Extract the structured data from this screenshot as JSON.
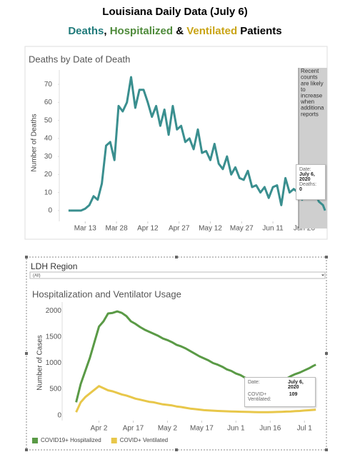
{
  "header": {
    "title": "Louisiana Daily Data (July 6)",
    "subtitle": [
      {
        "text": "Deaths",
        "color": "#1f7a7a"
      },
      {
        "text": ", ",
        "color": "#000000"
      },
      {
        "text": "Hospitalized",
        "color": "#4e8a3a"
      },
      {
        "text": " & ",
        "color": "#000000"
      },
      {
        "text": "Ventilated",
        "color": "#c9a416"
      },
      {
        "text": " Patients",
        "color": "#000000"
      }
    ]
  },
  "chart_data": [
    {
      "type": "line",
      "title": "Deaths by Date of Death",
      "y_label": "Number of Deaths",
      "xlim": [
        "2020-03-04",
        "2020-07-07"
      ],
      "ylim": [
        -6,
        76
      ],
      "grid": false,
      "yticks": [
        0,
        10,
        20,
        30,
        40,
        50,
        60,
        70
      ],
      "xticks": [
        {
          "value": "2020-03-13",
          "label": "Mar 13"
        },
        {
          "value": "2020-03-28",
          "label": "Mar 28"
        },
        {
          "value": "2020-04-12",
          "label": "Apr 12"
        },
        {
          "value": "2020-04-27",
          "label": "Apr 27"
        },
        {
          "value": "2020-05-12",
          "label": "May 12"
        },
        {
          "value": "2020-05-27",
          "label": "May 27"
        },
        {
          "value": "2020-06-11",
          "label": "Jun 11"
        },
        {
          "value": "2020-06-26",
          "label": "Jun 26"
        }
      ],
      "x": [
        "2020-03-05",
        "2020-03-07",
        "2020-03-09",
        "2020-03-11",
        "2020-03-13",
        "2020-03-15",
        "2020-03-17",
        "2020-03-19",
        "2020-03-21",
        "2020-03-23",
        "2020-03-25",
        "2020-03-27",
        "2020-03-29",
        "2020-03-31",
        "2020-04-02",
        "2020-04-04",
        "2020-04-06",
        "2020-04-08",
        "2020-04-10",
        "2020-04-12",
        "2020-04-14",
        "2020-04-16",
        "2020-04-18",
        "2020-04-20",
        "2020-04-22",
        "2020-04-24",
        "2020-04-26",
        "2020-04-28",
        "2020-04-30",
        "2020-05-02",
        "2020-05-04",
        "2020-05-06",
        "2020-05-08",
        "2020-05-10",
        "2020-05-12",
        "2020-05-14",
        "2020-05-16",
        "2020-05-18",
        "2020-05-20",
        "2020-05-22",
        "2020-05-24",
        "2020-05-26",
        "2020-05-28",
        "2020-05-30",
        "2020-06-01",
        "2020-06-03",
        "2020-06-05",
        "2020-06-07",
        "2020-06-09",
        "2020-06-11",
        "2020-06-13",
        "2020-06-15",
        "2020-06-17",
        "2020-06-19",
        "2020-06-21",
        "2020-06-23",
        "2020-06-25",
        "2020-06-27",
        "2020-06-29",
        "2020-07-01",
        "2020-07-03",
        "2020-07-05",
        "2020-07-06"
      ],
      "series": [
        {
          "name": "Deaths",
          "color": "#3a8f8f",
          "values": [
            0,
            0,
            0,
            0,
            1,
            3,
            8,
            6,
            15,
            36,
            38,
            28,
            58,
            55,
            60,
            74,
            57,
            67,
            67,
            60,
            52,
            58,
            47,
            56,
            42,
            58,
            45,
            47,
            38,
            40,
            34,
            45,
            32,
            33,
            28,
            37,
            26,
            23,
            30,
            20,
            24,
            18,
            17,
            22,
            13,
            14,
            10,
            13,
            7,
            13,
            14,
            3,
            18,
            10,
            12,
            10,
            6,
            13,
            9,
            11,
            5,
            3,
            0
          ]
        }
      ],
      "shaded_note": [
        "Recent",
        "counts",
        "are likely",
        "to",
        "increase",
        "when",
        "additiona",
        "reports"
      ],
      "tooltip": [
        {
          "label": "Date:",
          "value": "July 6, 2020"
        },
        {
          "label": "Deaths:",
          "value": 0
        }
      ]
    },
    {
      "type": "line",
      "title": "Hospitalization and Ventilator Usage",
      "y_label": "Number of Cases",
      "filter_label": "LDH Region",
      "filter_value": "(All)",
      "xlim": [
        "2020-03-20",
        "2020-07-10"
      ],
      "ylim": [
        -100,
        2100
      ],
      "grid": false,
      "yticks": [
        0,
        500,
        1000,
        1500,
        2000
      ],
      "xticks": [
        {
          "value": "2020-04-02",
          "label": "Apr 2"
        },
        {
          "value": "2020-04-17",
          "label": "Apr 17"
        },
        {
          "value": "2020-05-02",
          "label": "May 2"
        },
        {
          "value": "2020-05-17",
          "label": "May 17"
        },
        {
          "value": "2020-06-01",
          "label": "Jun 1"
        },
        {
          "value": "2020-06-16",
          "label": "Jun 16"
        },
        {
          "value": "2020-07-01",
          "label": "Jul 1"
        }
      ],
      "x": [
        "2020-03-23",
        "2020-03-25",
        "2020-03-27",
        "2020-03-29",
        "2020-03-31",
        "2020-04-02",
        "2020-04-04",
        "2020-04-06",
        "2020-04-08",
        "2020-04-10",
        "2020-04-12",
        "2020-04-14",
        "2020-04-16",
        "2020-04-18",
        "2020-04-20",
        "2020-04-22",
        "2020-04-24",
        "2020-04-26",
        "2020-04-28",
        "2020-04-30",
        "2020-05-02",
        "2020-05-04",
        "2020-05-06",
        "2020-05-08",
        "2020-05-10",
        "2020-05-12",
        "2020-05-14",
        "2020-05-16",
        "2020-05-18",
        "2020-05-20",
        "2020-05-22",
        "2020-05-24",
        "2020-05-26",
        "2020-05-28",
        "2020-05-30",
        "2020-06-01",
        "2020-06-03",
        "2020-06-05",
        "2020-06-07",
        "2020-06-09",
        "2020-06-11",
        "2020-06-13",
        "2020-06-15",
        "2020-06-17",
        "2020-06-19",
        "2020-06-21",
        "2020-06-23",
        "2020-06-25",
        "2020-06-27",
        "2020-06-29",
        "2020-07-01",
        "2020-07-03",
        "2020-07-05",
        "2020-07-06"
      ],
      "series": [
        {
          "name": "COVID19+ Hospitalized",
          "color": "#5a9a46",
          "values": [
            250,
            600,
            850,
            1100,
            1400,
            1700,
            1800,
            1950,
            1960,
            1990,
            1960,
            1900,
            1800,
            1750,
            1690,
            1640,
            1600,
            1560,
            1520,
            1470,
            1440,
            1400,
            1350,
            1320,
            1280,
            1230,
            1180,
            1130,
            1090,
            1050,
            1000,
            970,
            930,
            880,
            850,
            800,
            770,
            720,
            690,
            650,
            620,
            600,
            580,
            600,
            630,
            660,
            700,
            750,
            790,
            820,
            860,
            900,
            950,
            970
          ]
        },
        {
          "name": "COVID+ Ventilated",
          "color": "#e8c74a",
          "values": [
            60,
            250,
            350,
            420,
            490,
            560,
            520,
            480,
            460,
            430,
            400,
            380,
            350,
            320,
            300,
            280,
            260,
            250,
            230,
            210,
            200,
            190,
            170,
            160,
            145,
            130,
            120,
            110,
            100,
            95,
            90,
            85,
            80,
            78,
            75,
            72,
            70,
            68,
            65,
            62,
            60,
            60,
            60,
            62,
            65,
            68,
            72,
            75,
            80,
            85,
            92,
            98,
            105,
            109
          ]
        }
      ],
      "tooltip": [
        {
          "label": "Date:",
          "value": "July 6, 2020"
        },
        {
          "label": "COVID+ Ventilated:",
          "value": 109
        }
      ]
    }
  ]
}
